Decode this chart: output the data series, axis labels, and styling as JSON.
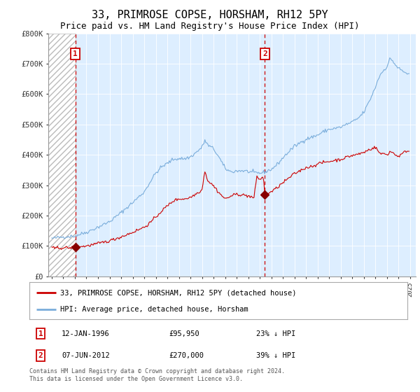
{
  "title": "33, PRIMROSE COPSE, HORSHAM, RH12 5PY",
  "subtitle": "Price paid vs. HM Land Registry's House Price Index (HPI)",
  "title_fontsize": 11,
  "subtitle_fontsize": 9,
  "background_color": "#ffffff",
  "plot_bg_color": "#ddeeff",
  "hatch_end_year": 1996.04,
  "xlim_start": 1993.7,
  "xlim_end": 2025.5,
  "ylim": [
    0,
    800000
  ],
  "yticks": [
    0,
    100000,
    200000,
    300000,
    400000,
    500000,
    600000,
    700000,
    800000
  ],
  "ytick_labels": [
    "£0",
    "£100K",
    "£200K",
    "£300K",
    "£400K",
    "£500K",
    "£600K",
    "£700K",
    "£800K"
  ],
  "xticks": [
    1994,
    1995,
    1996,
    1997,
    1998,
    1999,
    2000,
    2001,
    2002,
    2003,
    2004,
    2005,
    2006,
    2007,
    2008,
    2009,
    2010,
    2011,
    2012,
    2013,
    2014,
    2015,
    2016,
    2017,
    2018,
    2019,
    2020,
    2021,
    2022,
    2023,
    2024,
    2025
  ],
  "sale1_date": 1996.04,
  "sale1_price": 95950,
  "sale1_label": "1",
  "sale2_date": 2012.44,
  "sale2_price": 270000,
  "sale2_label": "2",
  "red_line_color": "#cc0000",
  "blue_line_color": "#7aaddb",
  "dot_color": "#880000",
  "vline_color": "#cc0000",
  "legend_red_label": "33, PRIMROSE COPSE, HORSHAM, RH12 5PY (detached house)",
  "legend_blue_label": "HPI: Average price, detached house, Horsham",
  "annotation1_date": "12-JAN-1996",
  "annotation1_price": "£95,950",
  "annotation1_pct": "23% ↓ HPI",
  "annotation2_date": "07-JUN-2012",
  "annotation2_price": "£270,000",
  "annotation2_pct": "39% ↓ HPI",
  "footer": "Contains HM Land Registry data © Crown copyright and database right 2024.\nThis data is licensed under the Open Government Licence v3.0."
}
